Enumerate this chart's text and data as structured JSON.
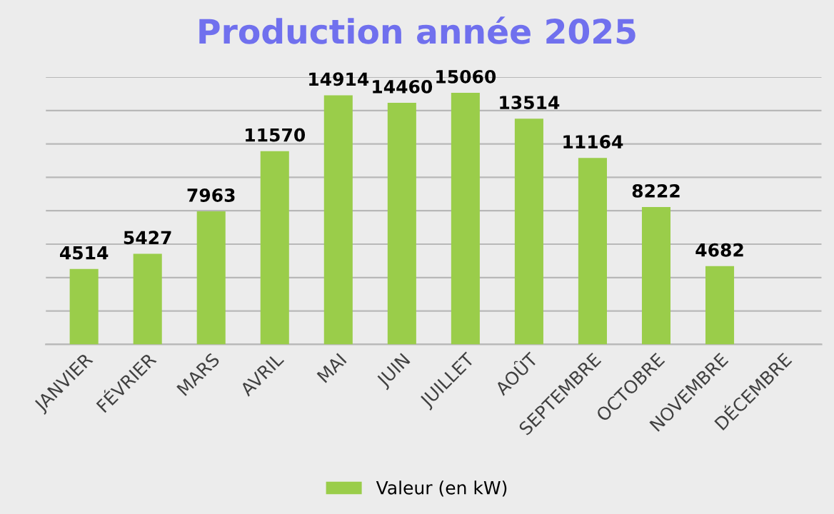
{
  "chart_data": {
    "type": "bar",
    "title": "Production année 2025",
    "categories": [
      "JANVIER",
      "FÉVRIER",
      "MARS",
      "AVRIL",
      "MAI",
      "JUIN",
      "JUILLET",
      "AOÛT",
      "SEPTEMBRE",
      "OCTOBRE",
      "NOVEMBRE",
      "DÉCEMBRE"
    ],
    "series": [
      {
        "name": "Valeur (en kW)",
        "color": "#9acd4a",
        "values": [
          4514,
          5427,
          7963,
          11570,
          14914,
          14460,
          15060,
          13514,
          11164,
          8222,
          4682,
          null
        ]
      }
    ],
    "ylim": [
      0,
      16000
    ],
    "yticks": [
      {
        "value": 0,
        "label": null
      },
      {
        "value": 2000,
        "label": null
      },
      {
        "value": 4000,
        "label": null
      },
      {
        "value": 6000,
        "label": null
      },
      {
        "value": 8000,
        "label": null
      },
      {
        "value": 10000,
        "label": null
      },
      {
        "value": 12000,
        "label": null
      },
      {
        "value": 14000,
        "label": null
      },
      {
        "value": 16000,
        "label": null
      }
    ],
    "grid": "y",
    "legend": "bottom",
    "data_labels": true,
    "tick_labels": "x"
  }
}
